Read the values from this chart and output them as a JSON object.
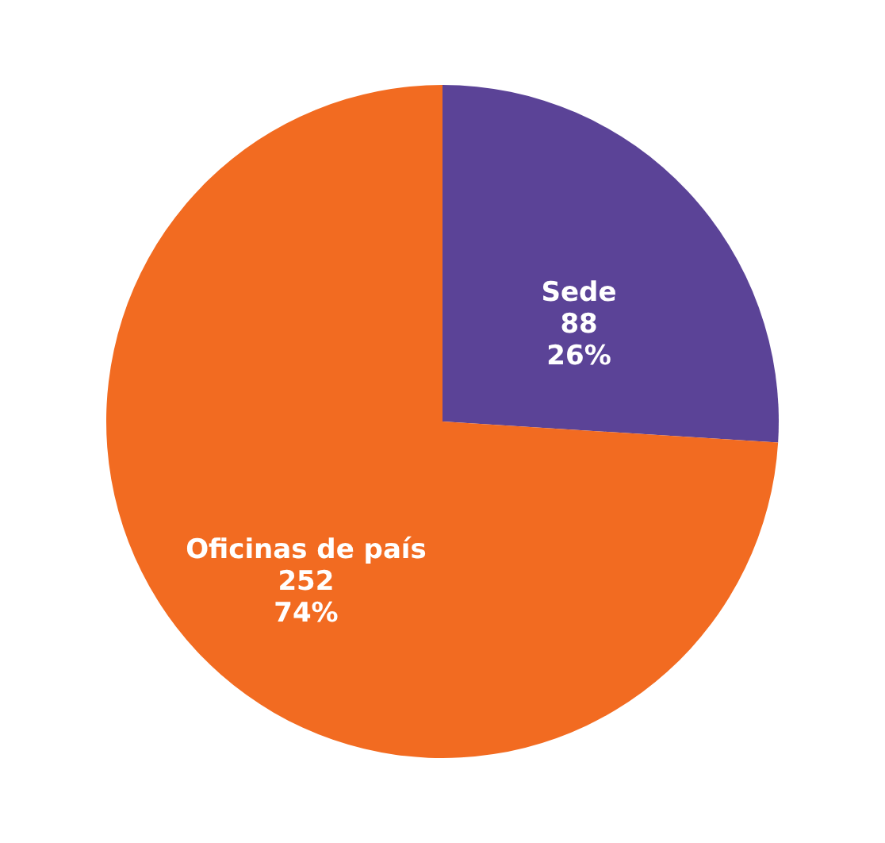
{
  "chart_data": {
    "type": "pie",
    "categories": [
      "Sede",
      "Oficinas de país"
    ],
    "values": [
      26,
      74
    ],
    "colors": [
      "#5b4397",
      "#f26b21"
    ],
    "value_labels": [
      "88\n26%",
      "252\n74%"
    ]
  }
}
